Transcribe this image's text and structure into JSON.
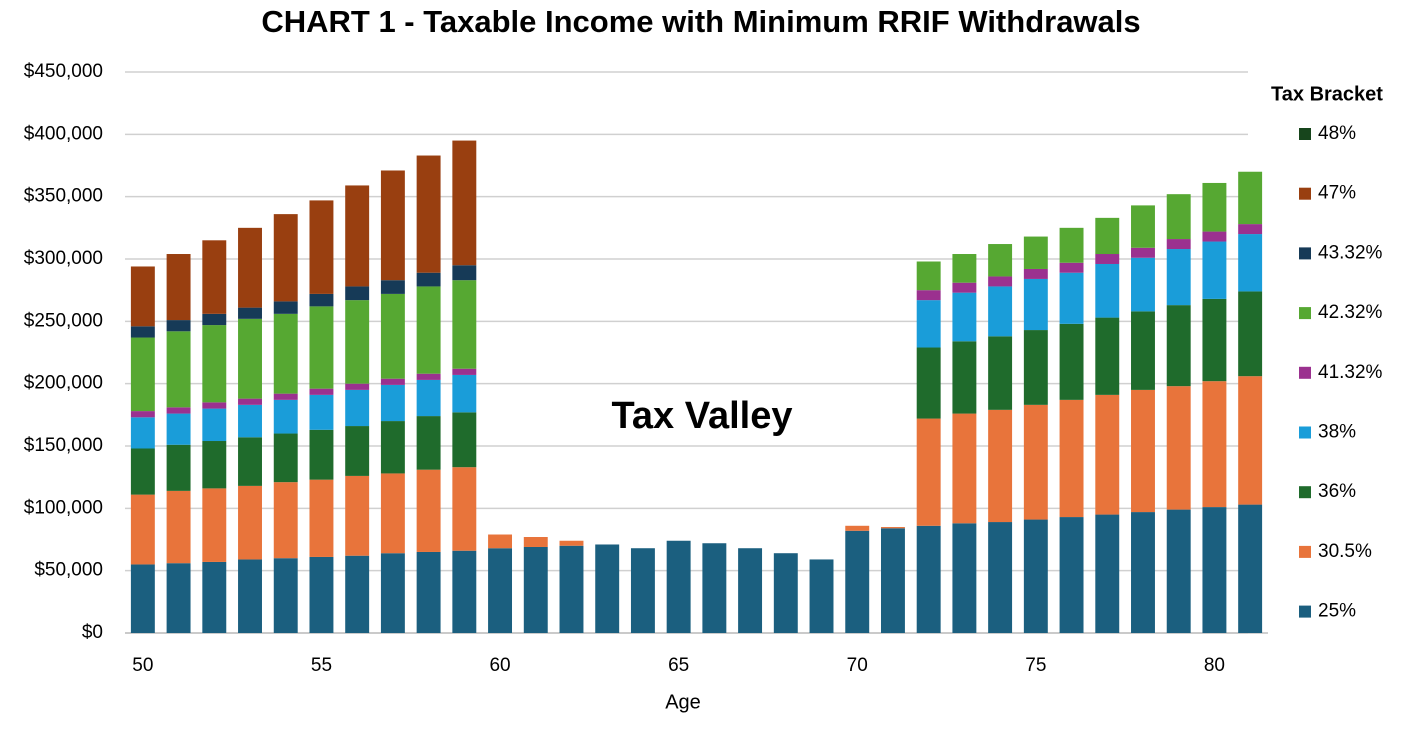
{
  "chart_data": {
    "type": "stacked-bar",
    "title": "CHART 1 - Taxable Income with Minimum RRIF Withdrawals",
    "x_label": "Age",
    "annotation": "Tax Valley",
    "legend_title": "Tax Bracket",
    "legend": "right",
    "grid": true,
    "x": [
      50,
      51,
      52,
      53,
      54,
      55,
      56,
      57,
      58,
      59,
      60,
      61,
      62,
      63,
      64,
      65,
      66,
      67,
      68,
      69,
      70,
      71,
      72,
      73,
      74,
      75,
      76,
      77,
      78,
      79,
      80,
      81
    ],
    "xlim": [
      49.5,
      81.5
    ],
    "xticks": [
      50,
      55,
      60,
      65,
      70,
      75,
      80
    ],
    "ylim": [
      0,
      450000
    ],
    "yticks": [
      {
        "value": 0,
        "label": "$0"
      },
      {
        "value": 50000,
        "label": "$50,000"
      },
      {
        "value": 100000,
        "label": "$100,000"
      },
      {
        "value": 150000,
        "label": "$150,000"
      },
      {
        "value": 200000,
        "label": "$200,000"
      },
      {
        "value": 250000,
        "label": "$250,000"
      },
      {
        "value": 300000,
        "label": "$300,000"
      },
      {
        "value": 350000,
        "label": "$350,000"
      },
      {
        "value": 400000,
        "label": "$400,000"
      },
      {
        "value": 450000,
        "label": "$450,000"
      }
    ],
    "series": [
      {
        "name": "25%",
        "color": "#1b5f7f",
        "values": [
          55000,
          56000,
          57000,
          59000,
          60000,
          61000,
          62000,
          64000,
          65000,
          66000,
          68000,
          69000,
          70000,
          71000,
          68000,
          74000,
          72000,
          68000,
          64000,
          59000,
          82000,
          84000,
          86000,
          88000,
          89000,
          91000,
          93000,
          95000,
          97000,
          99000,
          101000,
          103000
        ]
      },
      {
        "name": "30.5%",
        "color": "#e8743b",
        "values": [
          56000,
          58000,
          59000,
          59000,
          61000,
          62000,
          64000,
          64000,
          66000,
          67000,
          11000,
          8000,
          4000,
          0,
          0,
          0,
          0,
          0,
          0,
          0,
          4000,
          1000,
          86000,
          88000,
          90000,
          92000,
          94000,
          96000,
          98000,
          99000,
          101000,
          103000
        ]
      },
      {
        "name": "36%",
        "color": "#1f6b2c",
        "values": [
          37000,
          37000,
          38000,
          39000,
          39000,
          40000,
          40000,
          42000,
          43000,
          44000,
          0,
          0,
          0,
          0,
          0,
          0,
          0,
          0,
          0,
          0,
          0,
          0,
          57000,
          58000,
          59000,
          60000,
          61000,
          62000,
          63000,
          65000,
          66000,
          68000
        ]
      },
      {
        "name": "38%",
        "color": "#1a9dd9",
        "values": [
          25000,
          25000,
          26000,
          26000,
          27000,
          28000,
          29000,
          29000,
          29000,
          30000,
          0,
          0,
          0,
          0,
          0,
          0,
          0,
          0,
          0,
          0,
          0,
          0,
          38000,
          39000,
          40000,
          41000,
          41000,
          43000,
          43000,
          45000,
          46000,
          46000
        ]
      },
      {
        "name": "41.32%",
        "color": "#9b318f",
        "values": [
          5000,
          5000,
          5000,
          5000,
          5000,
          5000,
          5000,
          5000,
          5000,
          5000,
          0,
          0,
          0,
          0,
          0,
          0,
          0,
          0,
          0,
          0,
          0,
          0,
          8000,
          8000,
          8000,
          8000,
          8000,
          8000,
          8000,
          8000,
          8000,
          8000
        ]
      },
      {
        "name": "42.32%",
        "color": "#56a832",
        "values": [
          59000,
          61000,
          62000,
          64000,
          64000,
          66000,
          67000,
          68000,
          70000,
          71000,
          0,
          0,
          0,
          0,
          0,
          0,
          0,
          0,
          0,
          0,
          0,
          0,
          23000,
          23000,
          26000,
          26000,
          28000,
          29000,
          34000,
          36000,
          39000,
          42000
        ]
      },
      {
        "name": "43.32%",
        "color": "#163a57",
        "values": [
          9000,
          9000,
          9000,
          9000,
          10000,
          10000,
          11000,
          11000,
          11000,
          12000,
          0,
          0,
          0,
          0,
          0,
          0,
          0,
          0,
          0,
          0,
          0,
          0,
          0,
          0,
          0,
          0,
          0,
          0,
          0,
          0,
          0,
          0
        ]
      },
      {
        "name": "47%",
        "color": "#993f10",
        "values": [
          48000,
          53000,
          59000,
          64000,
          70000,
          75000,
          81000,
          88000,
          94000,
          100000,
          0,
          0,
          0,
          0,
          0,
          0,
          0,
          0,
          0,
          0,
          0,
          0,
          0,
          0,
          0,
          0,
          0,
          0,
          0,
          0,
          0,
          0
        ]
      },
      {
        "name": "48%",
        "color": "#17451c",
        "values": [
          0,
          0,
          0,
          0,
          0,
          0,
          0,
          0,
          0,
          0,
          0,
          0,
          0,
          0,
          0,
          0,
          0,
          0,
          0,
          0,
          0,
          0,
          0,
          0,
          0,
          0,
          0,
          0,
          0,
          0,
          0,
          0
        ]
      }
    ]
  }
}
